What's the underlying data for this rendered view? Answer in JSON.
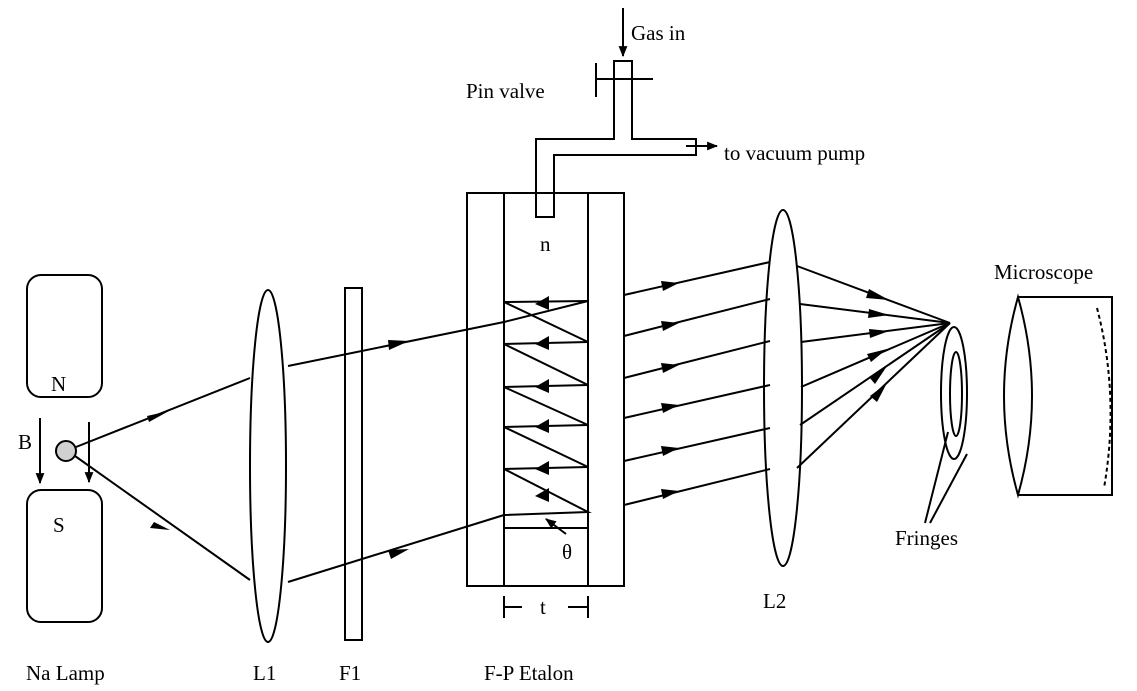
{
  "labels": {
    "gas_in": "Gas in",
    "pin_valve": "Pin valve",
    "to_vacuum_pump": "to vacuum pump",
    "n": "n",
    "microscope": "Microscope",
    "magnet_n": "N",
    "magnet_s": "S",
    "field_b": "B",
    "na_lamp": "Na Lamp",
    "lens_l1": "L1",
    "filter_f1": "F1",
    "etalon": "F-P Etalon",
    "thickness_t": "t",
    "angle_theta": "θ",
    "lens_l2": "L2",
    "fringes": "Fringes"
  }
}
